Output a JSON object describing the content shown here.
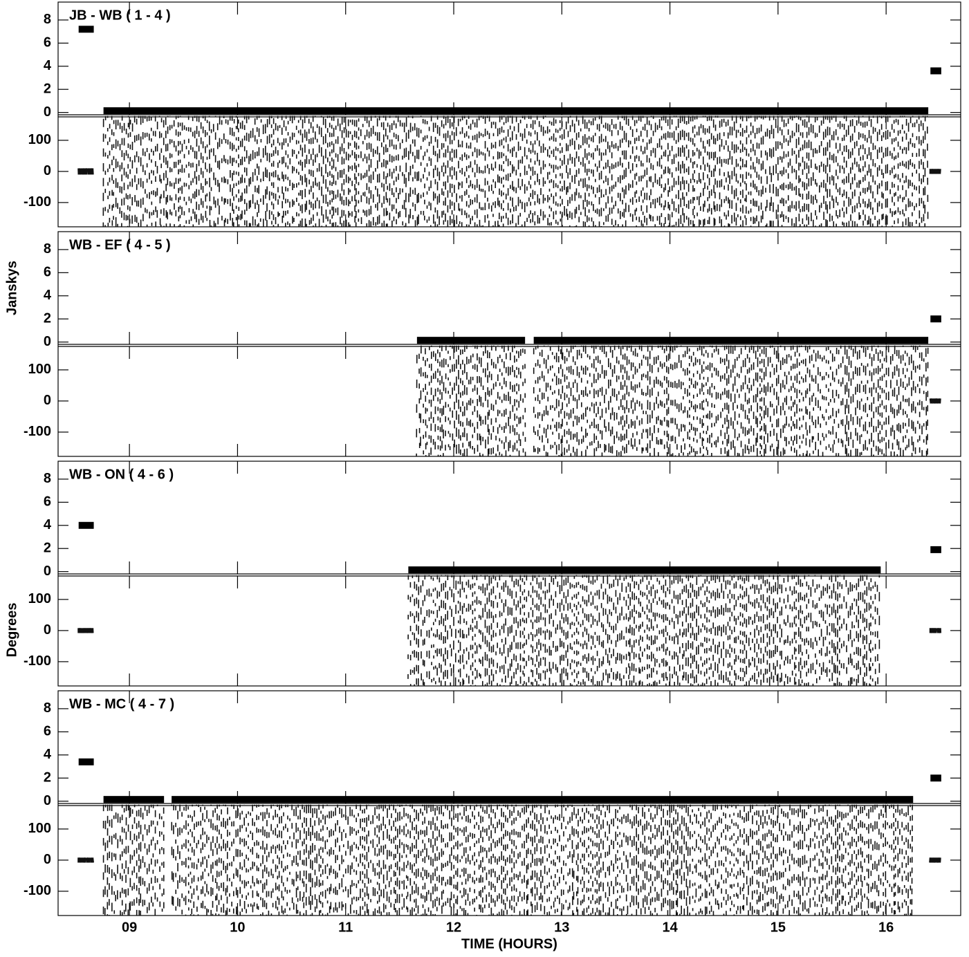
{
  "chart_data": [
    {
      "type": "vplot",
      "title": "JB - WB ( 1 - 4 )",
      "xlim": [
        8.34,
        16.69
      ],
      "xticks": [
        9,
        10,
        11,
        12,
        13,
        14,
        15,
        16
      ],
      "amplitude_ylim": [
        -0.2,
        9.55
      ],
      "amplitude_yticks": [
        0,
        2,
        4,
        6,
        8
      ],
      "phase_ylim": [
        -178,
        182
      ],
      "phase_yticks": [
        -100,
        0,
        100
      ],
      "scans": [
        {
          "start": 8.53,
          "end": 8.67,
          "amplitude": 7.2,
          "phase_min": -10,
          "phase_max": 10
        },
        {
          "start": 8.76,
          "end": 16.39,
          "amplitude": 0.15,
          "phase_min": -178,
          "phase_max": 178
        },
        {
          "start": 16.41,
          "end": 16.51,
          "amplitude": 3.6,
          "phase_min": -8,
          "phase_max": 8
        }
      ]
    },
    {
      "type": "vplot",
      "title": "WB - EF ( 4 - 5 )",
      "ylabel": "Janskys",
      "xlim": [
        8.34,
        16.69
      ],
      "xticks": [
        9,
        10,
        11,
        12,
        13,
        14,
        15,
        16
      ],
      "amplitude_ylim": [
        -0.2,
        9.55
      ],
      "amplitude_yticks": [
        0,
        2,
        4,
        6,
        8
      ],
      "phase_ylim": [
        -178,
        182
      ],
      "phase_yticks": [
        -100,
        0,
        100
      ],
      "scans": [
        {
          "start": 11.66,
          "end": 12.66,
          "amplitude": 0.15,
          "phase_min": -178,
          "phase_max": 178
        },
        {
          "start": 12.74,
          "end": 16.39,
          "amplitude": 0.15,
          "phase_min": -178,
          "phase_max": 178
        },
        {
          "start": 16.41,
          "end": 16.51,
          "amplitude": 2.0,
          "phase_min": -8,
          "phase_max": 8
        }
      ]
    },
    {
      "type": "vplot",
      "title": "WB - ON ( 4 - 6 )",
      "ylabel": "Degrees",
      "xlim": [
        8.34,
        16.69
      ],
      "xticks": [
        9,
        10,
        11,
        12,
        13,
        14,
        15,
        16
      ],
      "amplitude_ylim": [
        -0.2,
        9.55
      ],
      "amplitude_yticks": [
        0,
        2,
        4,
        6,
        8
      ],
      "phase_ylim": [
        -178,
        182
      ],
      "phase_yticks": [
        -100,
        0,
        100
      ],
      "scans": [
        {
          "start": 8.53,
          "end": 8.67,
          "amplitude": 4.0,
          "phase_min": -8,
          "phase_max": 8
        },
        {
          "start": 11.58,
          "end": 15.95,
          "amplitude": 0.15,
          "phase_min": -178,
          "phase_max": 178
        },
        {
          "start": 16.41,
          "end": 16.51,
          "amplitude": 1.9,
          "phase_min": -8,
          "phase_max": 8
        }
      ]
    },
    {
      "type": "vplot",
      "title": "WB - MC ( 4 - 7 )",
      "xlabel": "TIME (HOURS)",
      "xlim": [
        8.34,
        16.69
      ],
      "xticks": [
        {
          "value": 9,
          "label": "09"
        },
        {
          "value": 10,
          "label": "10"
        },
        {
          "value": 11,
          "label": "11"
        },
        {
          "value": 12,
          "label": "12"
        },
        {
          "value": 13,
          "label": "13"
        },
        {
          "value": 14,
          "label": "14"
        },
        {
          "value": 15,
          "label": "15"
        },
        {
          "value": 16,
          "label": "16"
        }
      ],
      "amplitude_ylim": [
        -0.2,
        9.55
      ],
      "amplitude_yticks": [
        0,
        2,
        4,
        6,
        8
      ],
      "phase_ylim": [
        -178,
        182
      ],
      "phase_yticks": [
        -100,
        0,
        100
      ],
      "scans": [
        {
          "start": 8.53,
          "end": 8.67,
          "amplitude": 3.4,
          "phase_min": -8,
          "phase_max": 8
        },
        {
          "start": 8.76,
          "end": 9.32,
          "amplitude": 0.15,
          "phase_min": -178,
          "phase_max": 178
        },
        {
          "start": 9.39,
          "end": 16.25,
          "amplitude": 0.15,
          "phase_min": -178,
          "phase_max": 178
        },
        {
          "start": 16.41,
          "end": 16.51,
          "amplitude": 2.0,
          "phase_min": -8,
          "phase_max": 8
        }
      ]
    }
  ]
}
